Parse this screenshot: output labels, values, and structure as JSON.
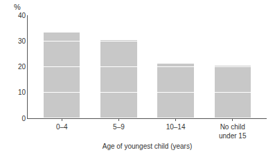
{
  "chart_data": {
    "type": "bar",
    "stacked": true,
    "categories": [
      "0–4",
      "5–9",
      "10–14",
      "No child\nunder 15"
    ],
    "series": [
      {
        "values": [
          10,
          10,
          10,
          10
        ]
      },
      {
        "values": [
          10,
          10,
          10,
          10
        ]
      },
      {
        "values": [
          10,
          10,
          1.5,
          0.5
        ]
      },
      {
        "values": [
          3.5,
          0.5,
          0,
          0
        ]
      }
    ],
    "color": "#c8c8c8",
    "xlabel": "Age of youngest child (years)",
    "ylabel": "%",
    "ylim": [
      0,
      40
    ],
    "yticks": [
      0,
      10,
      20,
      30,
      40
    ],
    "grid": false
  }
}
